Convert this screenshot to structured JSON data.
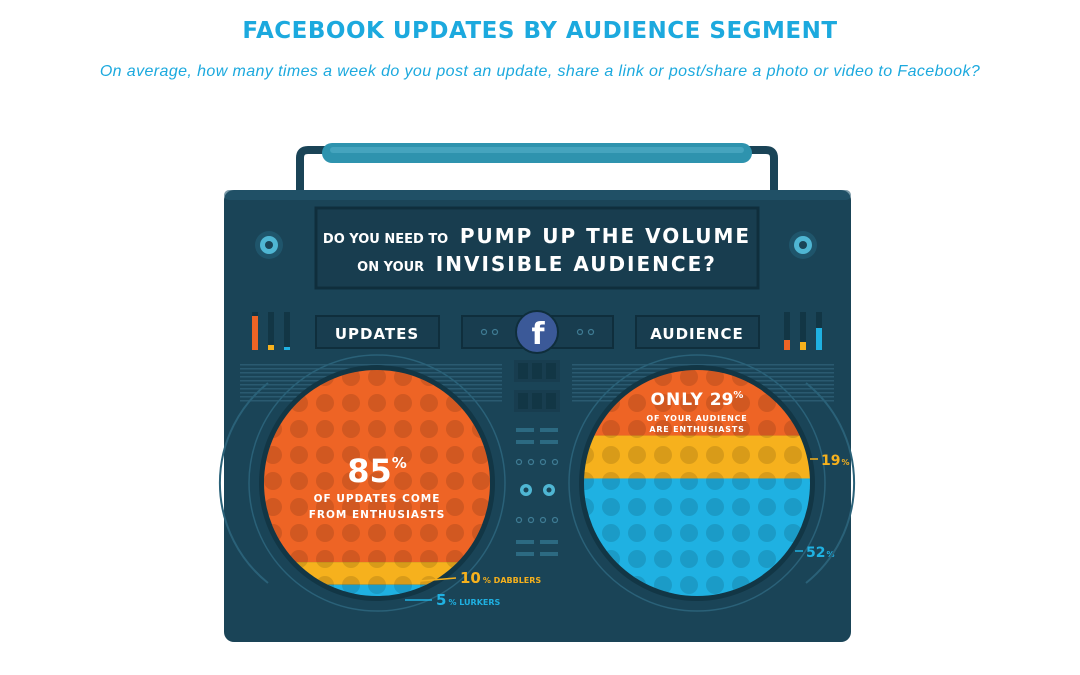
{
  "title": "FACEBOOK UPDATES BY AUDIENCE SEGMENT",
  "subtitle": "On average, how many times a week do you post an update, share a link or post/share a photo or video to Facebook?",
  "headline": {
    "prefix1": "DO YOU NEED TO",
    "bold1": "PUMP UP THE VOLUME",
    "prefix2": "ON YOUR",
    "bold2": "INVISIBLE AUDIENCE?"
  },
  "labels": {
    "updates": "UPDATES",
    "audience": "AUDIENCE",
    "facebook_glyph": "f"
  },
  "colors": {
    "enthusiasts": "#ee6425",
    "dabblers": "#f6b11d",
    "lurkers": "#1fb1e2",
    "body": "#1a4457",
    "title": "#1ca9de"
  },
  "chart_data": [
    {
      "type": "bar",
      "categories": [
        "Enthusiasts",
        "Dabblers",
        "Lurkers"
      ],
      "values": [
        85,
        10,
        5
      ],
      "annotations": {
        "main_value": "85",
        "main_unit": "%",
        "main_line1": "OF UPDATES COME",
        "main_line2": "FROM ENTHUSIASTS",
        "dabblers_value": "10",
        "dabblers_text": "% DABBLERS",
        "lurkers_value": "5",
        "lurkers_text": "% LURKERS"
      }
    },
    {
      "type": "bar",
      "categories": [
        "Enthusiasts",
        "Dabblers",
        "Lurkers"
      ],
      "values": [
        29,
        19,
        52
      ],
      "annotations": {
        "main_prefix": "ONLY",
        "main_value": "29",
        "main_unit": "%",
        "main_line1": "OF YOUR AUDIENCE",
        "main_line2": "ARE ENTHUSIASTS",
        "dabblers_value": "19",
        "dabblers_unit": "%",
        "lurkers_value": "52",
        "lurkers_unit": "%"
      }
    }
  ]
}
